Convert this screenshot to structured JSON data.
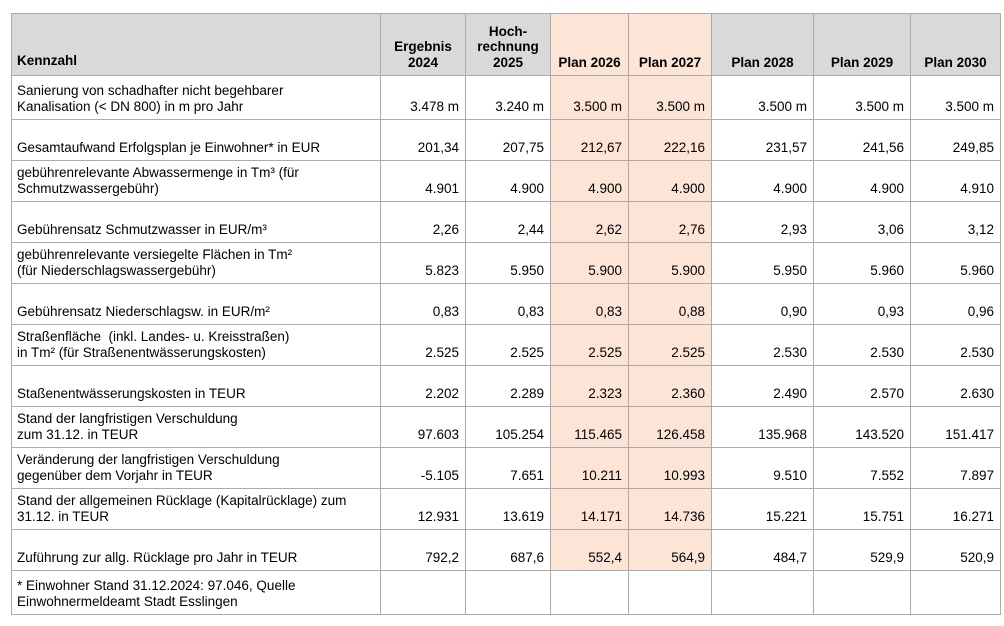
{
  "colors": {
    "header_bg": "#d9d9d9",
    "highlight_bg": "#fce4d6",
    "border": "#ababab",
    "text": "#000000"
  },
  "table": {
    "header": {
      "kennzahl_label": "Kennzahl",
      "columns": [
        {
          "label": "Ergebnis\n2024",
          "highlight": false
        },
        {
          "label": "Hoch-\nrechnung\n2025",
          "highlight": false
        },
        {
          "label": "Plan 2026",
          "highlight": true
        },
        {
          "label": "Plan 2027",
          "highlight": true
        },
        {
          "label": "Plan 2028",
          "highlight": false
        },
        {
          "label": "Plan 2029",
          "highlight": false
        },
        {
          "label": "Plan 2030",
          "highlight": false
        }
      ]
    },
    "rows": [
      {
        "label": "Sanierung von schadhafter nicht begehbarer\nKanalisation (< DN 800) in m pro Jahr",
        "values": [
          "3.478 m",
          "3.240 m",
          "3.500 m",
          "3.500 m",
          "3.500 m",
          "3.500 m",
          "3.500 m"
        ]
      },
      {
        "label": "Gesamtaufwand Erfolgsplan je Einwohner* in EUR",
        "values": [
          "201,34",
          "207,75",
          "212,67",
          "222,16",
          "231,57",
          "241,56",
          "249,85"
        ]
      },
      {
        "label": "gebührenrelevante Abwassermenge in Tm³ (für\nSchmutzwassergebühr)",
        "values": [
          "4.901",
          "4.900",
          "4.900",
          "4.900",
          "4.900",
          "4.900",
          "4.910"
        ]
      },
      {
        "label": "Gebührensatz Schmutzwasser in EUR/m³",
        "values": [
          "2,26",
          "2,44",
          "2,62",
          "2,76",
          "2,93",
          "3,06",
          "3,12"
        ]
      },
      {
        "label": "gebührenrelevante versiegelte Flächen in Tm²\n(für Niederschlagswassergebühr)",
        "values": [
          "5.823",
          "5.950",
          "5.900",
          "5.900",
          "5.950",
          "5.960",
          "5.960"
        ]
      },
      {
        "label": "Gebührensatz Niederschlagsw. in EUR/m²",
        "values": [
          "0,83",
          "0,83",
          "0,83",
          "0,88",
          "0,90",
          "0,93",
          "0,96"
        ]
      },
      {
        "label": "Straßenfläche  (inkl. Landes- u. Kreisstraßen)\nin Tm² (für Straßenentwässerungskosten)",
        "values": [
          "2.525",
          "2.525",
          "2.525",
          "2.525",
          "2.530",
          "2.530",
          "2.530"
        ]
      },
      {
        "label": "Staßenentwässerungskosten in TEUR",
        "values": [
          "2.202",
          "2.289",
          "2.323",
          "2.360",
          "2.490",
          "2.570",
          "2.630"
        ]
      },
      {
        "label": "Stand der langfristigen Verschuldung\nzum 31.12. in TEUR",
        "values": [
          "97.603",
          "105.254",
          "115.465",
          "126.458",
          "135.968",
          "143.520",
          "151.417"
        ]
      },
      {
        "label": "Veränderung der langfristigen Verschuldung\ngegenüber dem Vorjahr in TEUR",
        "values": [
          "-5.105",
          "7.651",
          "10.211",
          "10.993",
          "9.510",
          "7.552",
          "7.897"
        ]
      },
      {
        "label": "Stand der allgemeinen Rücklage (Kapitalrücklage) zum\n31.12. in TEUR",
        "values": [
          "12.931",
          "13.619",
          "14.171",
          "14.736",
          "15.221",
          "15.751",
          "16.271"
        ]
      },
      {
        "label": "Zuführung zur allg. Rücklage pro Jahr in TEUR",
        "values": [
          "792,2",
          "687,6",
          "552,4",
          "564,9",
          "484,7",
          "529,9",
          "520,9"
        ]
      }
    ],
    "footnote": "* Einwohner Stand 31.12.2024: 97.046, Quelle\nEinwohnermeldeamt Stadt Esslingen"
  }
}
